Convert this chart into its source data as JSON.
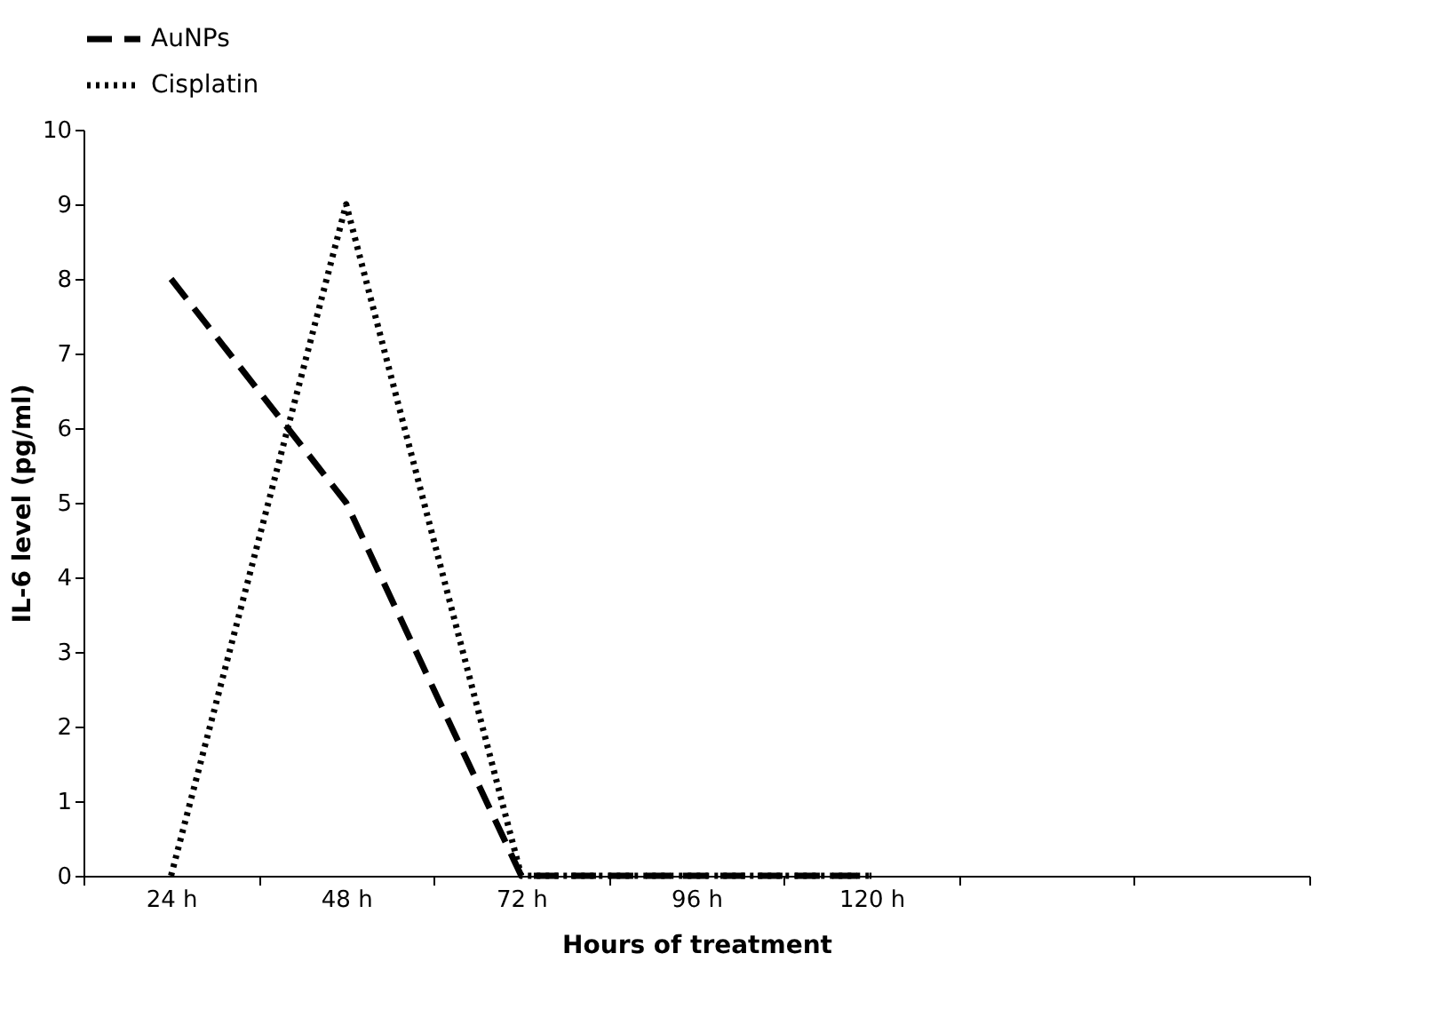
{
  "chart_data": {
    "type": "line",
    "xlabel": "Hours of treatment",
    "ylabel": "IL-6 level (pg/ml)",
    "categories": [
      "24 h",
      "48 h",
      "72 h",
      "96 h",
      "120 h",
      null,
      null
    ],
    "series": [
      {
        "name": "AuNPs",
        "color": "#000000",
        "line_style": "dashed",
        "values": [
          8,
          5,
          0,
          0,
          0,
          null,
          null
        ]
      },
      {
        "name": "Cisplatin",
        "color": "#000000",
        "line_style": "dotted",
        "values": [
          0,
          9,
          0,
          0,
          0,
          null,
          null
        ]
      }
    ],
    "ylim": [
      0,
      10
    ],
    "yticks": [
      0,
      1,
      2,
      3,
      4,
      5,
      6,
      7,
      8,
      9,
      10
    ],
    "grid": false,
    "legend": "top",
    "marker": "none"
  }
}
